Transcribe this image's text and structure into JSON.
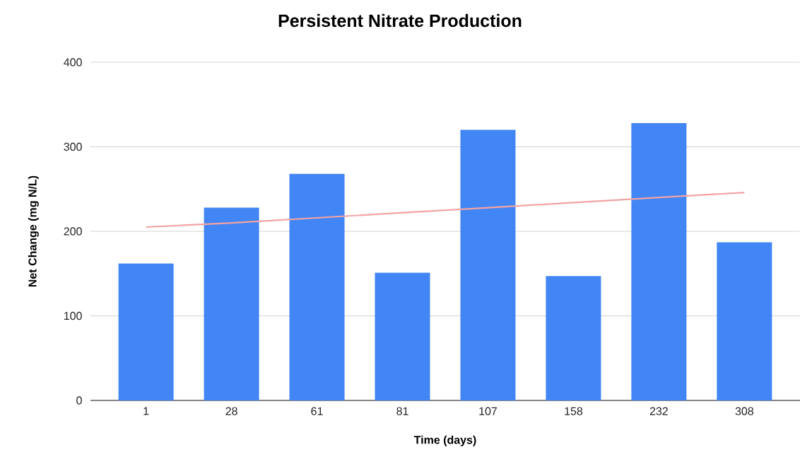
{
  "chart_data": {
    "type": "bar",
    "title": "Persistent Nitrate Production",
    "xlabel": "Time (days)",
    "ylabel": "Net Change (mg N/L)",
    "categories": [
      "1",
      "28",
      "61",
      "81",
      "107",
      "158",
      "232",
      "308"
    ],
    "series": [
      {
        "color": "#4285f4",
        "values": [
          162,
          228,
          268,
          151,
          320,
          147,
          328,
          187
        ]
      },
      {
        "type": "line",
        "color": "#f4a3a3",
        "values": [
          205,
          210,
          216,
          222,
          228,
          234,
          240,
          246
        ]
      }
    ],
    "ylim": [
      0,
      400
    ],
    "yticks": [
      0,
      100,
      200,
      300,
      400
    ],
    "grid": "y"
  }
}
